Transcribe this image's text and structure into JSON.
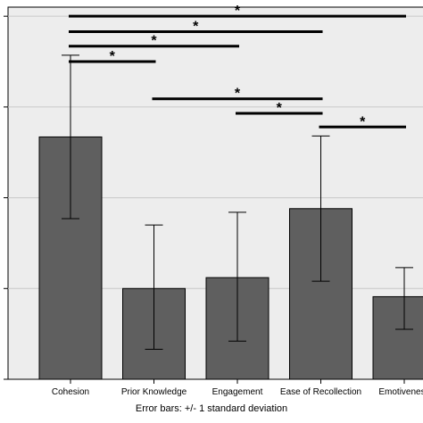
{
  "chart_data": {
    "type": "bar",
    "categories": [
      "Cohesion",
      "Prior Knowledge",
      "Engagement",
      "Ease of Recollection",
      "Emotiveness"
    ],
    "values": [
      2.67,
      1.0,
      1.12,
      1.88,
      0.91
    ],
    "error_bars": [
      {
        "low": 1.77,
        "high": 3.57
      },
      {
        "low": 0.33,
        "high": 1.7
      },
      {
        "low": 0.42,
        "high": 1.84
      },
      {
        "low": 1.08,
        "high": 2.68
      },
      {
        "low": 0.55,
        "high": 1.23
      }
    ],
    "ylim": [
      0,
      4.1
    ],
    "y_gridlines": [
      0,
      1,
      2,
      3,
      4
    ],
    "bar_color": "#5f5f5f",
    "plot_background": "#ededed",
    "title": "",
    "xlabel": "",
    "ylabel": "",
    "note": "Error bars: +/- 1 standard deviation",
    "significance": [
      {
        "from": 0,
        "to": 4,
        "y": 4.0,
        "label": "*"
      },
      {
        "from": 0,
        "to": 3,
        "y": 3.83,
        "label": "*"
      },
      {
        "from": 0,
        "to": 2,
        "y": 3.67,
        "label": "*"
      },
      {
        "from": 0,
        "to": 1,
        "y": 3.5,
        "label": "*"
      },
      {
        "from": 1,
        "to": 3,
        "y": 3.09,
        "label": "*"
      },
      {
        "from": 2,
        "to": 3,
        "y": 2.93,
        "label": "*"
      },
      {
        "from": 3,
        "to": 4,
        "y": 2.78,
        "label": "*"
      }
    ]
  }
}
